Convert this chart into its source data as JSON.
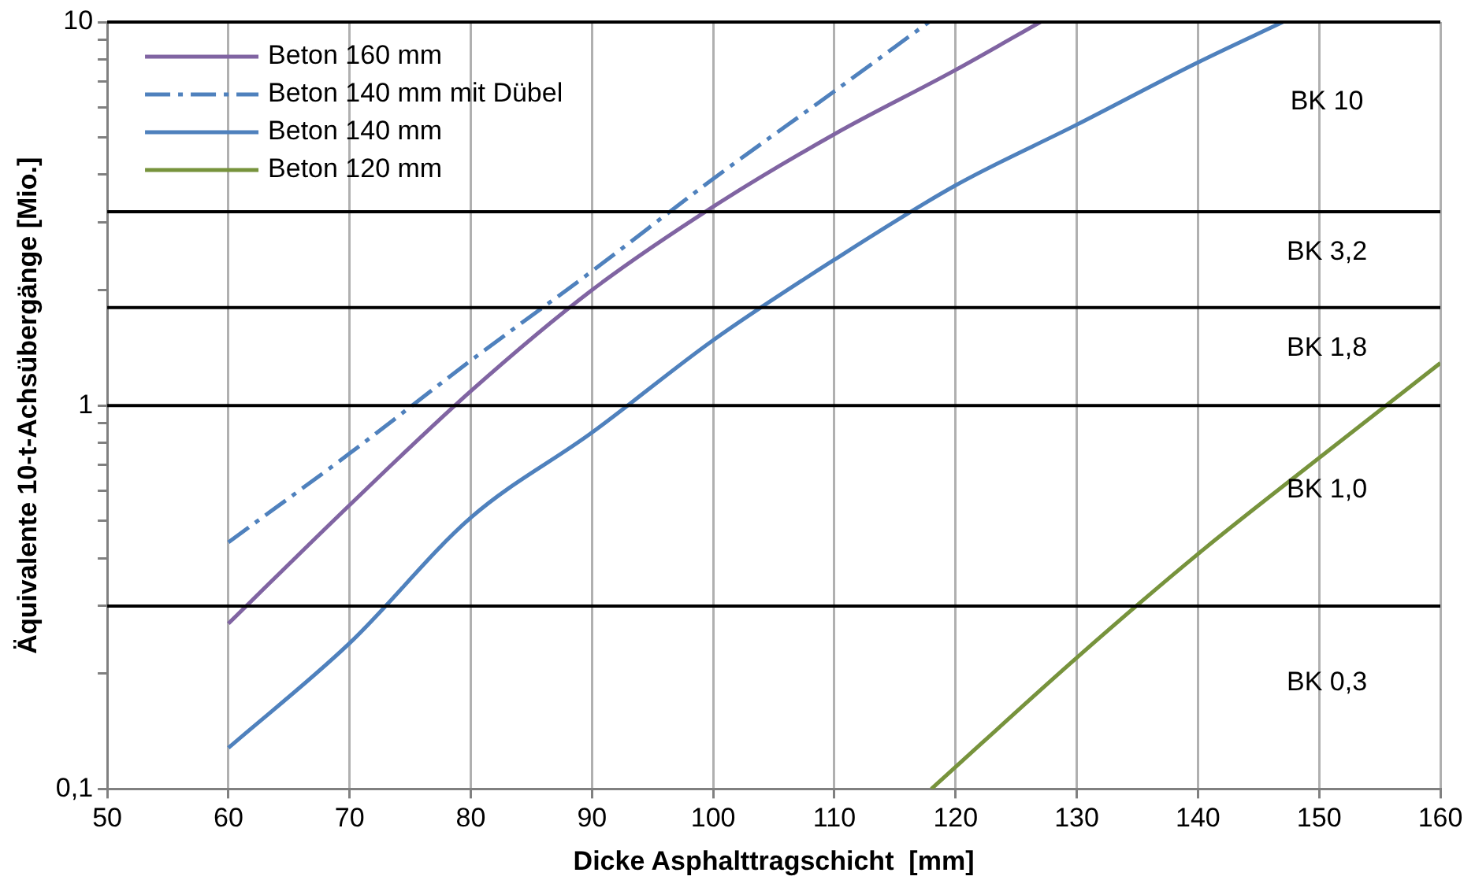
{
  "chart_data": {
    "type": "line",
    "xlabel": "Dicke Asphalttragschicht  [mm]",
    "ylabel": "Äquivalente 10-t-Achsübergänge [Mio.]",
    "log": "y",
    "grid": "x",
    "legend": "top left",
    "marker": "none",
    "xlim": [
      50,
      160
    ],
    "xticks": [
      50,
      60,
      70,
      80,
      90,
      100,
      110,
      120,
      130,
      140,
      150,
      160
    ],
    "ylim": [
      0.1,
      10
    ],
    "yticks": [
      {
        "value": 0.1,
        "label": "0,1"
      },
      {
        "value": 0.2,
        "label": null
      },
      {
        "value": 0.3,
        "label": null
      },
      {
        "value": 0.4,
        "label": null
      },
      {
        "value": 0.5,
        "label": null
      },
      {
        "value": 0.6,
        "label": null
      },
      {
        "value": 0.7,
        "label": null
      },
      {
        "value": 0.8,
        "label": null
      },
      {
        "value": 0.9,
        "label": null
      },
      1,
      {
        "value": 2,
        "label": null
      },
      {
        "value": 3,
        "label": null
      },
      {
        "value": 4,
        "label": null
      },
      {
        "value": 5,
        "label": null
      },
      {
        "value": 6,
        "label": null
      },
      {
        "value": 7,
        "label": null
      },
      {
        "value": 8,
        "label": null
      },
      {
        "value": 9,
        "label": null
      },
      10
    ],
    "series": [
      {
        "name": "Beton 160 mm",
        "color": "#8064a2",
        "line_style": "solid",
        "x": [
          60,
          70,
          80,
          90,
          100,
          110,
          120,
          127
        ],
        "values": [
          0.27,
          0.55,
          1.09,
          2.0,
          3.3,
          5.1,
          7.5,
          10
        ]
      },
      {
        "name": "Beton 140 mm mit Dübel",
        "color": "#4f81bd",
        "line_style": "dashed",
        "x": [
          60,
          70,
          80,
          90,
          100,
          110,
          117.8
        ],
        "values": [
          0.44,
          0.75,
          1.31,
          2.24,
          3.9,
          6.6,
          10
        ]
      },
      {
        "name": "Beton 140 mm",
        "color": "#4f81bd",
        "line_style": "solid",
        "x": [
          60,
          70,
          80,
          90,
          100,
          110,
          120,
          130,
          140,
          147
        ],
        "values": [
          0.128,
          0.24,
          0.51,
          0.85,
          1.48,
          2.4,
          3.75,
          5.4,
          7.85,
          10
        ]
      },
      {
        "name": "Beton 120 mm",
        "color": "#77933c",
        "line_style": "solid",
        "x": [
          118,
          130,
          140,
          150,
          160
        ],
        "values": [
          0.1,
          0.22,
          0.41,
          0.73,
          1.29
        ]
      }
    ],
    "ref_lines": [
      {
        "axis": "y",
        "value": 0.3,
        "color": "#000000"
      },
      {
        "axis": "y",
        "value": 1,
        "color": "#000000"
      },
      {
        "axis": "y",
        "value": 1.8,
        "color": "#000000"
      },
      {
        "axis": "y",
        "value": 3.2,
        "color": "#000000"
      }
    ],
    "annotations": [
      "BK 10",
      "BK 3,2",
      "BK 1,8",
      "BK 1,0",
      "BK 0,3"
    ]
  }
}
